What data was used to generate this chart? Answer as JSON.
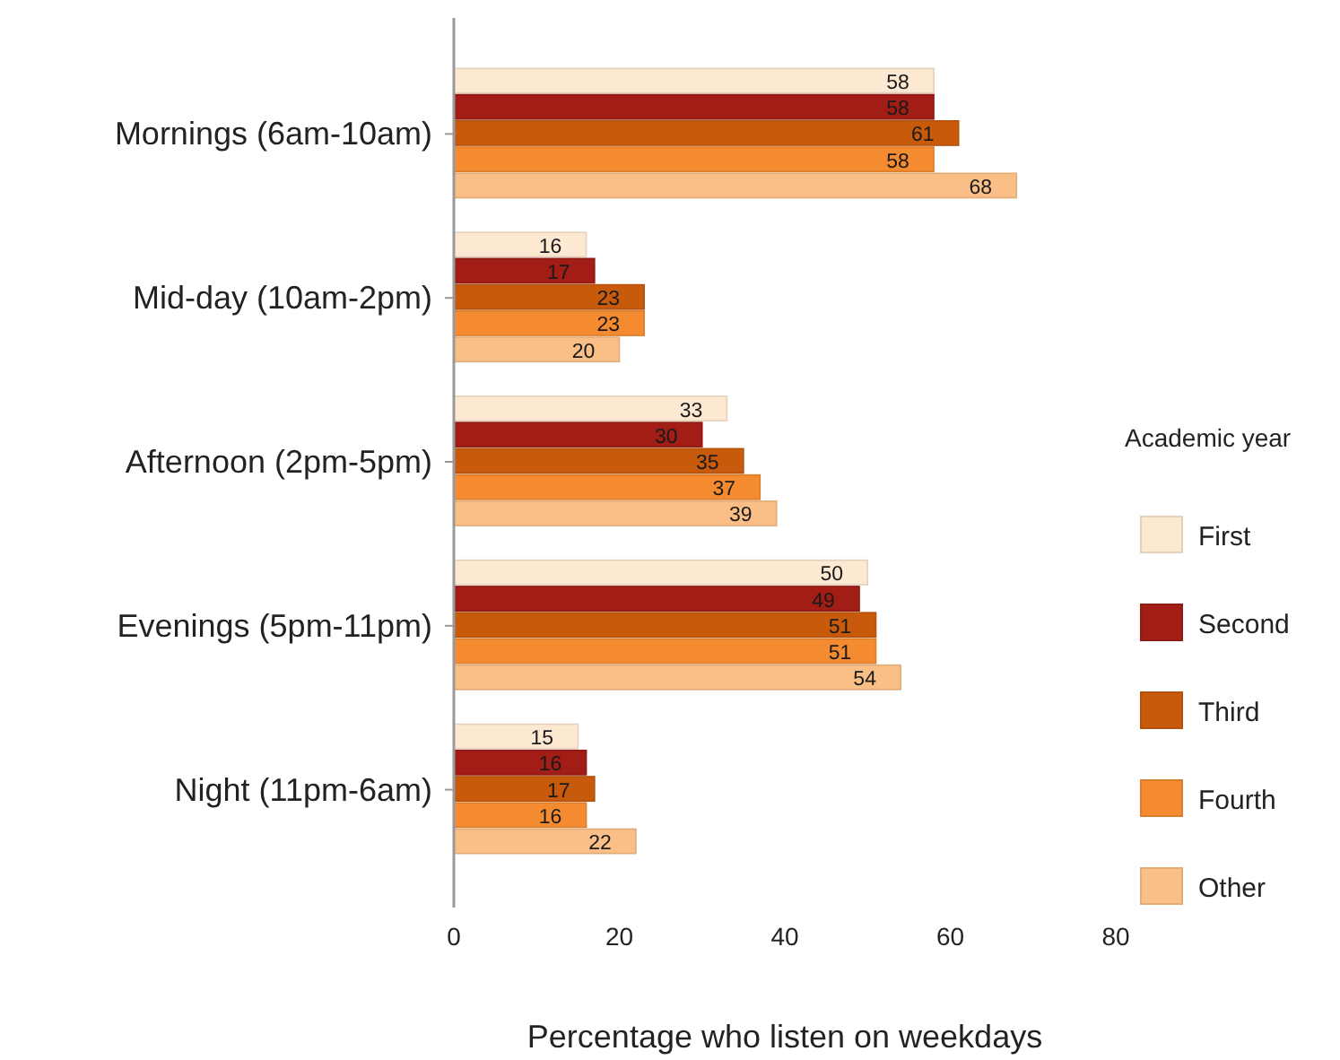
{
  "chart_data": {
    "type": "bar",
    "orientation": "horizontal",
    "xlabel": "Percentage who listen on weekdays",
    "legend_title": "Academic year",
    "legend": "right",
    "categories": [
      "Mornings (6am-10am)",
      "Mid-day (10am-2pm)",
      "Afternoon (2pm-5pm)",
      "Evenings (5pm-11pm)",
      "Night (11pm-6am)"
    ],
    "series": [
      {
        "name": "First",
        "color": "#fde8d2",
        "values": [
          58,
          16,
          33,
          50,
          15
        ]
      },
      {
        "name": "Second",
        "color": "#a11d15",
        "values": [
          58,
          17,
          30,
          49,
          16
        ]
      },
      {
        "name": "Third",
        "color": "#c85a0c",
        "values": [
          61,
          23,
          35,
          51,
          17
        ]
      },
      {
        "name": "Fourth",
        "color": "#f58b30",
        "values": [
          58,
          23,
          37,
          51,
          16
        ]
      },
      {
        "name": "Other",
        "color": "#f9bf86",
        "values": [
          68,
          20,
          39,
          54,
          22
        ]
      }
    ],
    "xlim": [
      0,
      80
    ],
    "xticks": [
      0,
      20,
      40,
      60,
      80
    ],
    "data_labels": true,
    "grid": false
  }
}
